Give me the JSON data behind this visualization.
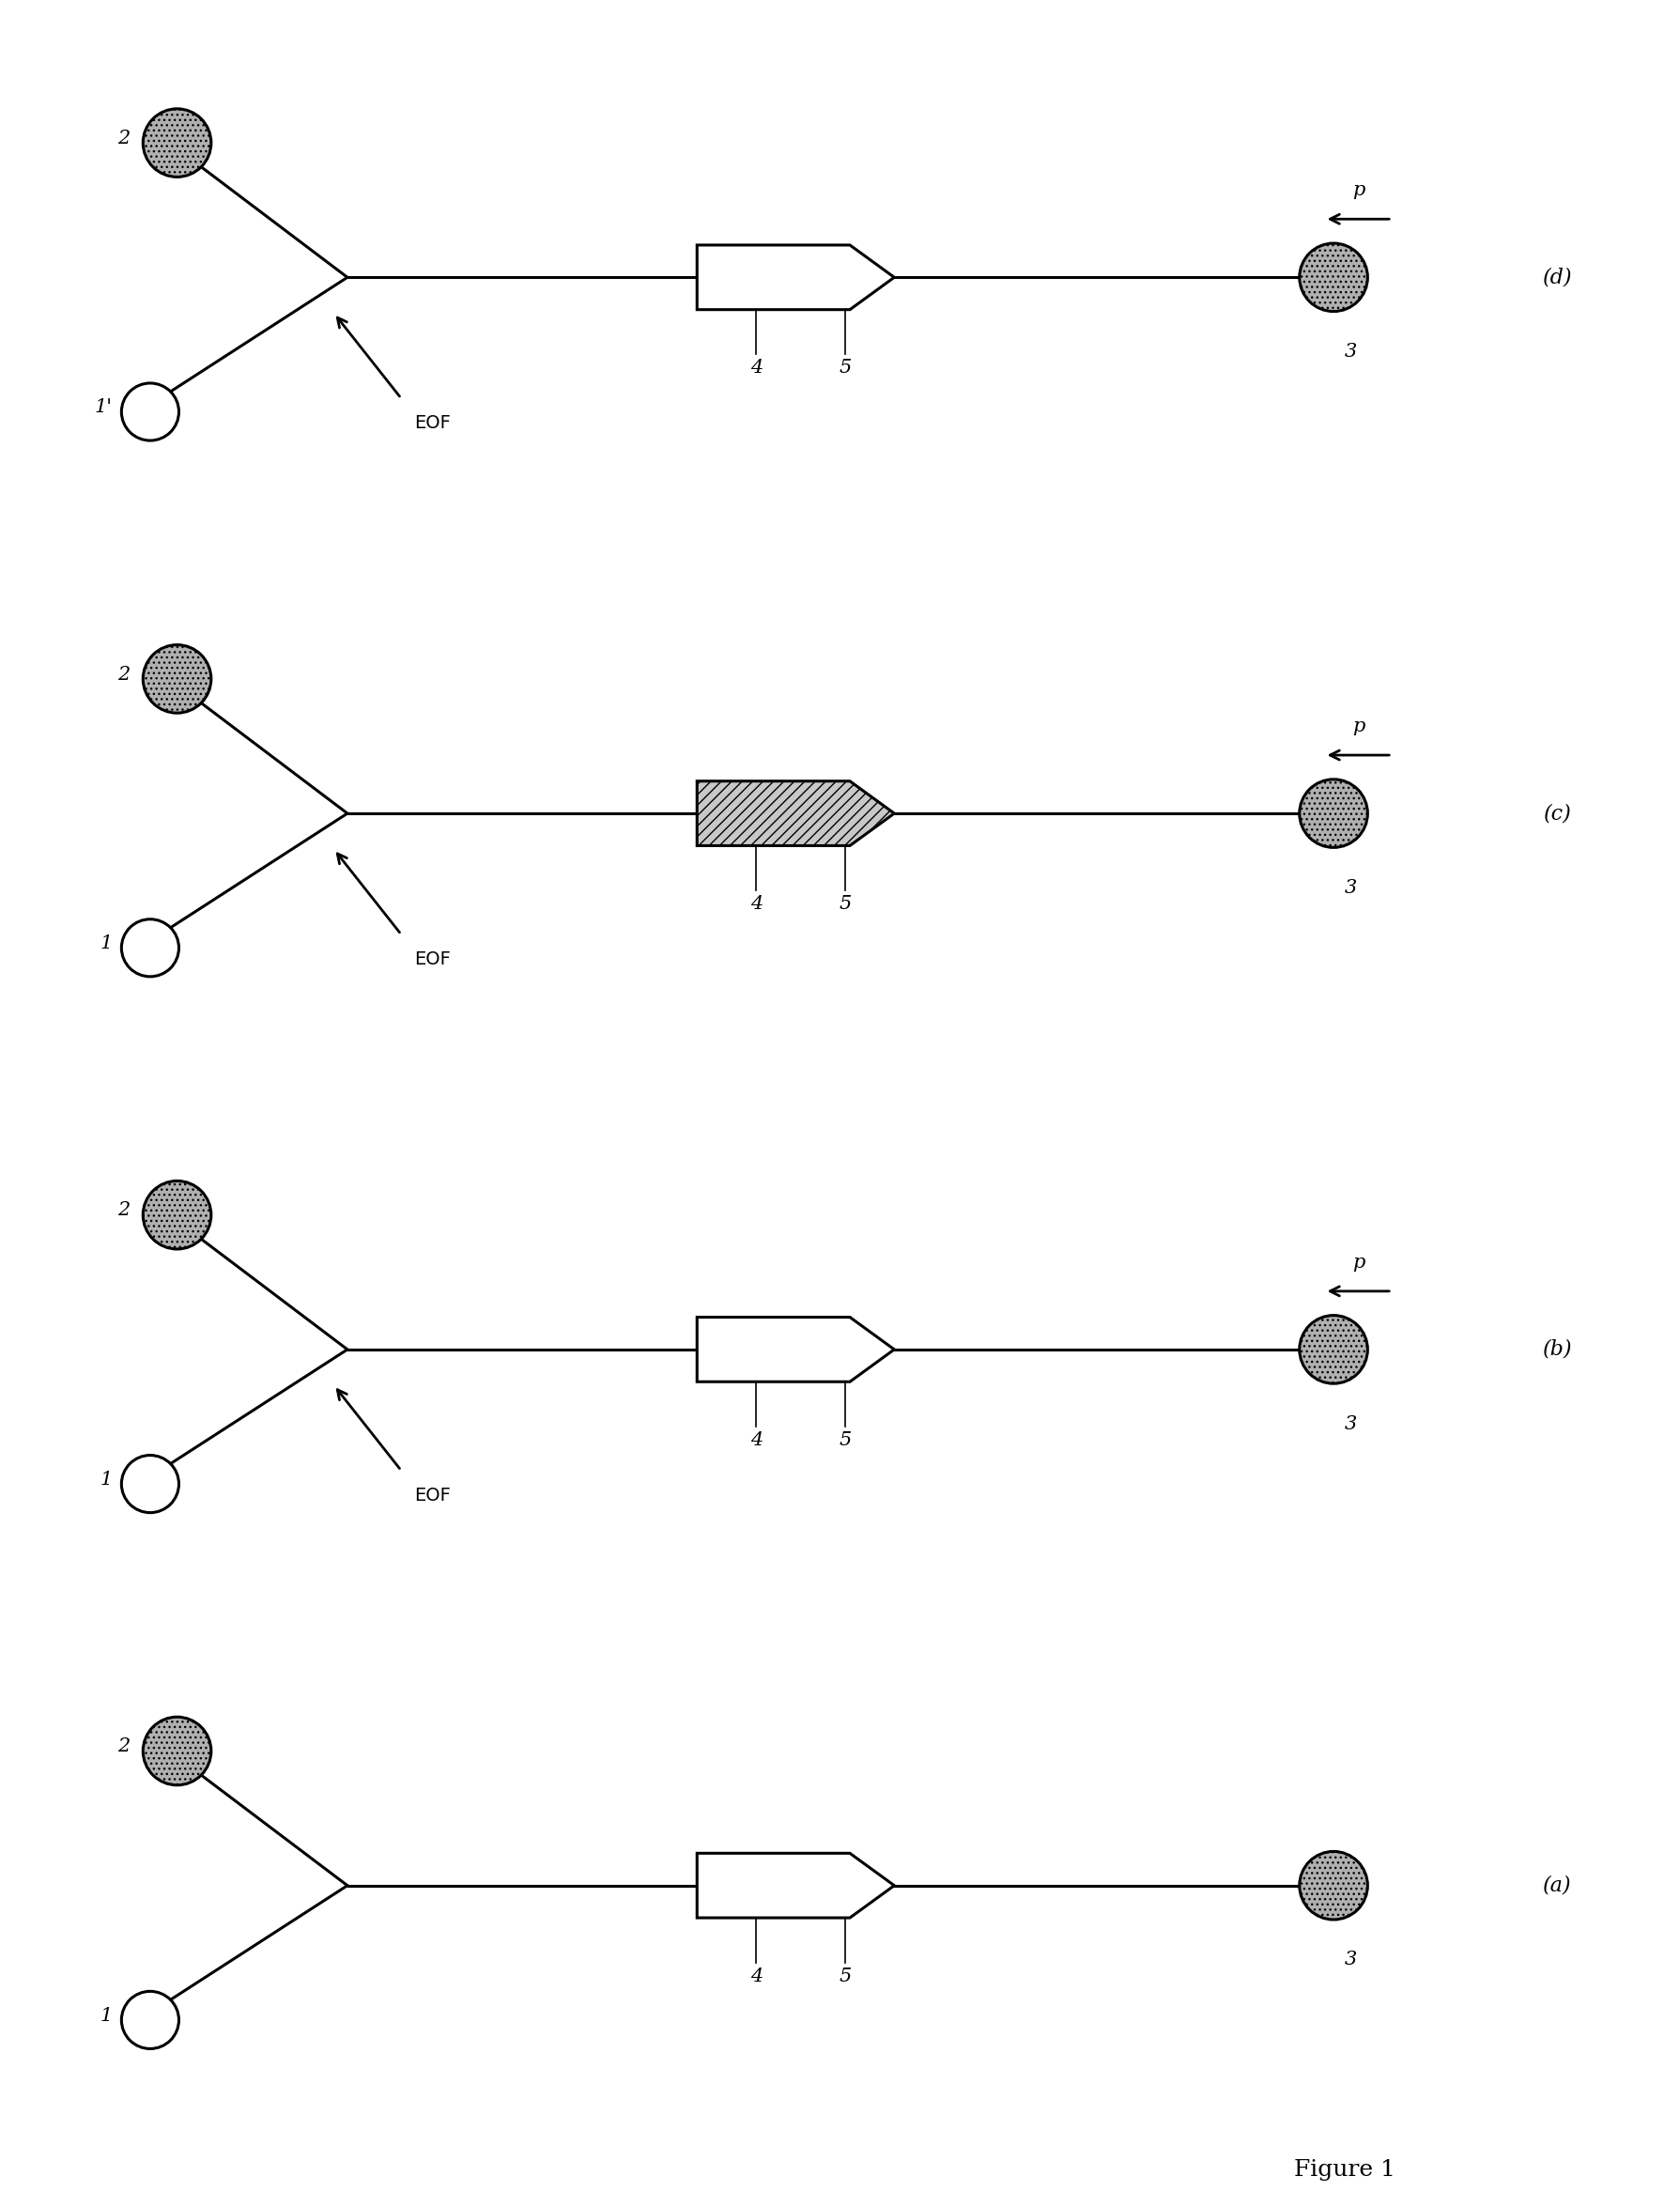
{
  "panels": [
    "(a)",
    "(b)",
    "(c)",
    "(d)"
  ],
  "figure_title": "Figure 1",
  "bg_color": "#ffffff",
  "line_color": "#000000",
  "row_order": [
    "d",
    "c",
    "b",
    "a"
  ],
  "panel_configs": {
    "a": {
      "label": "(a)",
      "has_eof": false,
      "has_p": false,
      "channel_filled": false,
      "label1": "1"
    },
    "b": {
      "label": "(b)",
      "has_eof": true,
      "has_p": true,
      "channel_filled": false,
      "label1": "1"
    },
    "c": {
      "label": "(c)",
      "has_eof": true,
      "has_p": true,
      "channel_filled": true,
      "label1": "1"
    },
    "d": {
      "label": "(d)",
      "has_eof": true,
      "has_p": true,
      "channel_filled": false,
      "label1": "1'"
    }
  }
}
